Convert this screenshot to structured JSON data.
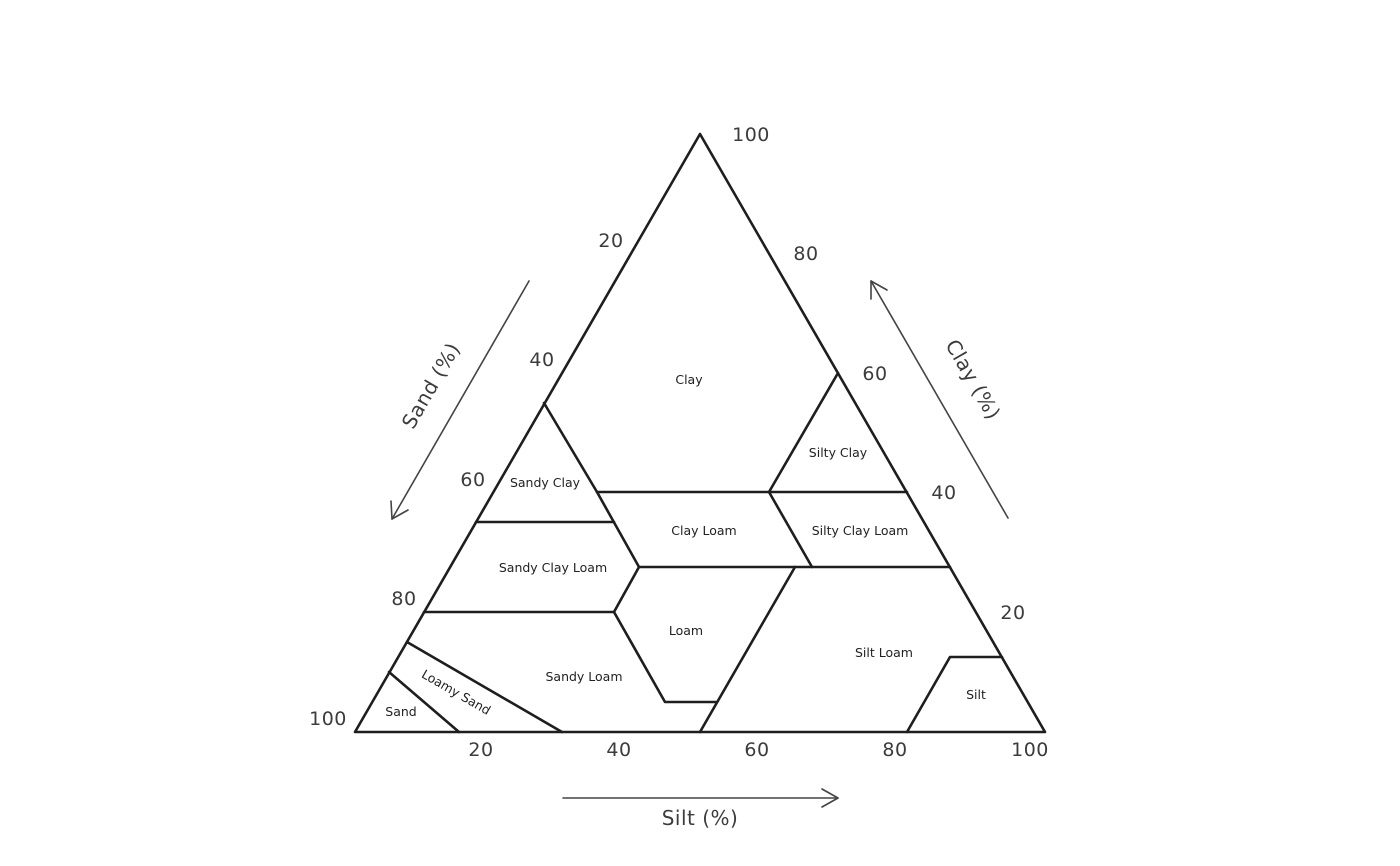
{
  "diagram": {
    "type": "soil-texture-triangle",
    "axes": {
      "sand": {
        "label": "Sand (%)",
        "ticks": [
          "20",
          "40",
          "60",
          "80",
          "100"
        ]
      },
      "clay": {
        "label": "Clay (%)",
        "ticks": [
          "20",
          "40",
          "60",
          "80",
          "100"
        ]
      },
      "silt": {
        "label": "Silt (%)",
        "ticks": [
          "20",
          "40",
          "60",
          "80",
          "100"
        ]
      }
    },
    "regions": {
      "clay": "Clay",
      "silty_clay": "Silty Clay",
      "sandy_clay": "Sandy Clay",
      "clay_loam": "Clay Loam",
      "silty_clay_loam": "Silty Clay Loam",
      "sandy_clay_loam": "Sandy Clay Loam",
      "loam": "Loam",
      "silt_loam": "Silt Loam",
      "sandy_loam": "Sandy Loam",
      "silt": "Silt",
      "loamy_sand": "Loamy Sand",
      "sand": "Sand"
    }
  }
}
